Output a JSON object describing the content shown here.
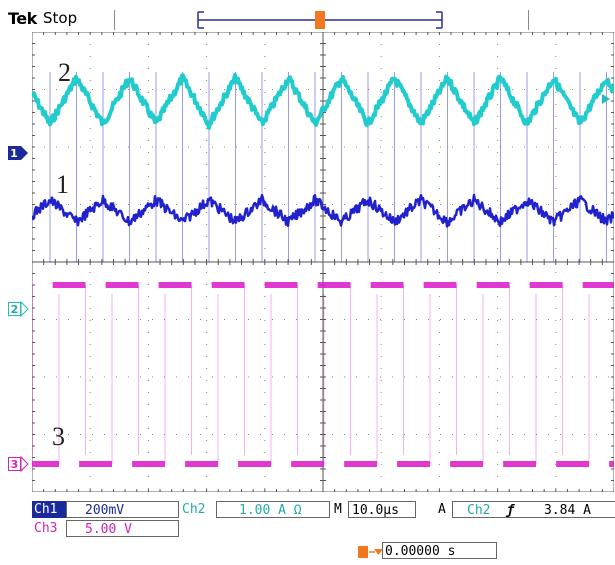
{
  "header": {
    "brand": "Tek",
    "state": "Stop"
  },
  "trigger_marker": "T",
  "trace_labels": {
    "ch2": "2",
    "ch1": "1",
    "ch3": "3"
  },
  "channel_markers": {
    "ch1": "1",
    "ch2": "2",
    "ch3": "3"
  },
  "colors": {
    "ch1": "#2222cc",
    "ch2": "#22cccc",
    "ch3": "#dd22cc",
    "trigger": "#f07820",
    "grid": "#888888"
  },
  "readout": {
    "ch1_name": "Ch1",
    "ch1_scale": "200mV",
    "ch2_name": "Ch2",
    "ch2_scale": "1.00 A Ω",
    "timebase_label": "M",
    "timebase_value": "10.0µs",
    "trigger_mode": "A",
    "trigger_source": "Ch2",
    "trigger_slope": "ƒ",
    "trigger_level": "3.84 A",
    "ch3_name": "Ch3",
    "ch3_scale": "5.00 V",
    "position_value": "0.00000 s"
  }
}
